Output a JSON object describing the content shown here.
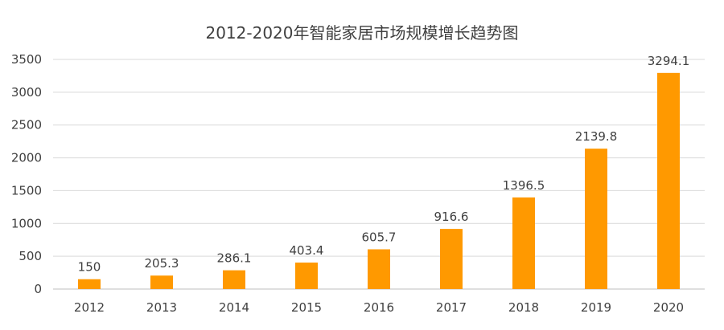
{
  "chart_data": {
    "type": "bar",
    "title": "2012-2020年智能家居市场规模增长趋势图",
    "xlabel": "",
    "ylabel": "",
    "categories": [
      "2012",
      "2013",
      "2014",
      "2015",
      "2016",
      "2017",
      "2018",
      "2019",
      "2020"
    ],
    "values": [
      150,
      205.3,
      286.1,
      403.4,
      605.7,
      916.6,
      1396.5,
      2139.8,
      3294.1
    ],
    "value_labels": [
      "150",
      "205.3",
      "286.1",
      "403.4",
      "605.7",
      "916.6",
      "1396.5",
      "2139.8",
      "3294.1"
    ],
    "ylim": [
      0,
      3500
    ],
    "yticks": [
      "0",
      "500",
      "1000",
      "1500",
      "2000",
      "2500",
      "3000",
      "3500"
    ],
    "grid": true,
    "legend": "none",
    "bar_color": "#FF9900",
    "grid_color": "#D9D9D9",
    "text_color": "#404040"
  }
}
